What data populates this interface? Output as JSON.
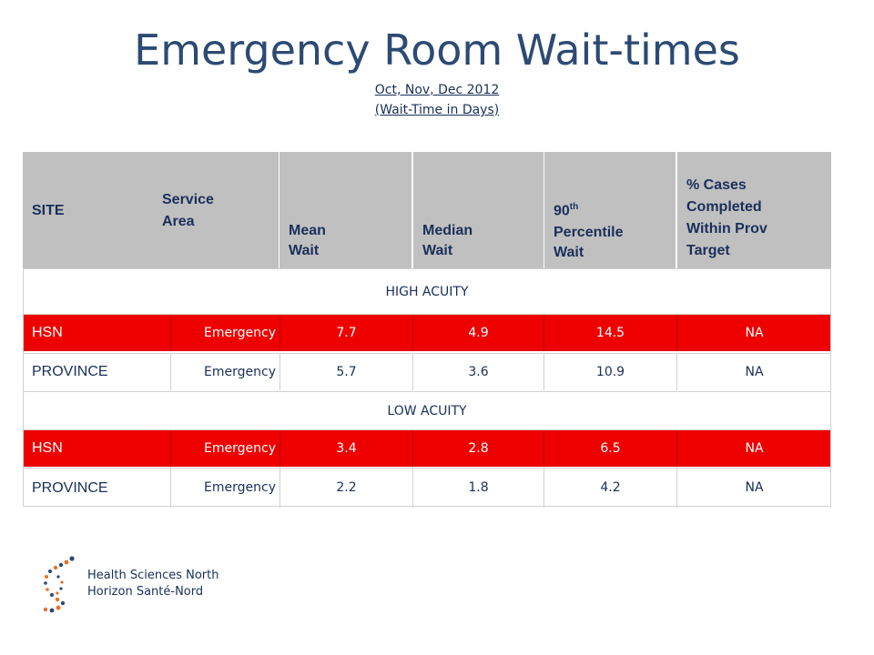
{
  "title": "Emergency Room Wait-times",
  "subtitle_period": "Oct, Nov, Dec 2012",
  "subtitle_unit": "(Wait-Time in Days)",
  "table": {
    "headers": {
      "site": "SITE",
      "service_area_line1": "Service",
      "service_area_line2": "Area",
      "mean_line1": "Mean",
      "mean_line2": "Wait",
      "median_line1": "Median",
      "median_line2": "Wait",
      "p90_num": "90",
      "p90_sup": "th",
      "p90_line2": "Percentile",
      "p90_line3": "Wait",
      "pct_line1": "% Cases",
      "pct_line2": "Completed",
      "pct_line3": "Within Prov",
      "pct_line4": "Target"
    },
    "high_label": "HIGH ACUITY",
    "low_label": "LOW ACUITY",
    "high_rows": [
      {
        "site": "HSN",
        "service": "Emergency",
        "mean": "7.7",
        "median": "4.9",
        "p90": "14.5",
        "pct": "NA"
      },
      {
        "site": "PROVINCE",
        "service": "Emergency",
        "mean": "5.7",
        "median": "3.6",
        "p90": "10.9",
        "pct": "NA"
      }
    ],
    "low_rows": [
      {
        "site": "HSN",
        "service": "Emergency",
        "mean": "3.4",
        "median": "2.8",
        "p90": "6.5",
        "pct": "NA"
      },
      {
        "site": "PROVINCE",
        "service": "Emergency",
        "mean": "2.2",
        "median": "1.8",
        "p90": "4.2",
        "pct": "NA"
      }
    ]
  },
  "logo": {
    "line1": "Health Sciences North",
    "line2": "Horizon Santé-Nord"
  },
  "colors": {
    "hsn_row": "#ee0000",
    "header": "#c0c0c0",
    "title": "#2c4a73"
  }
}
